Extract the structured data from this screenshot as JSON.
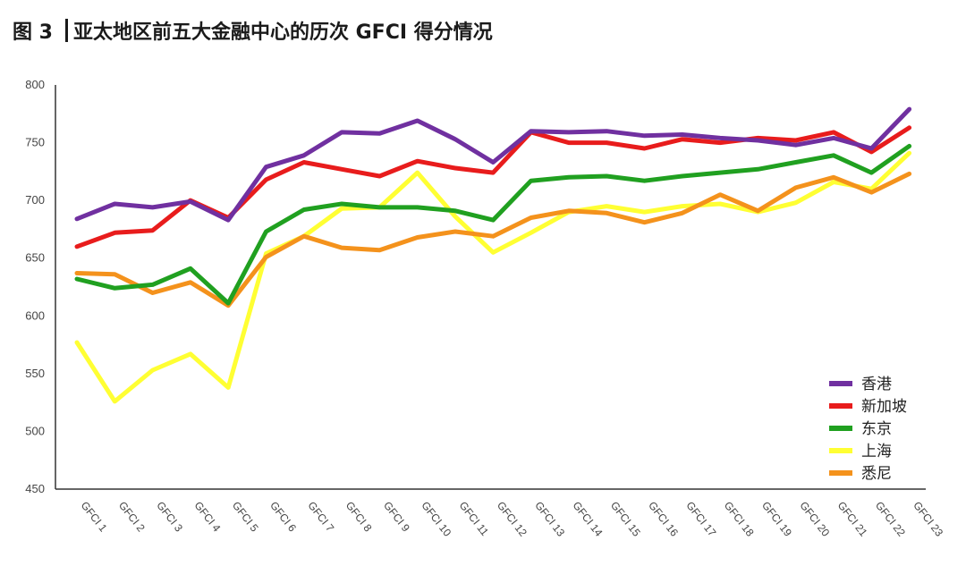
{
  "figure": {
    "number": "图 3",
    "title": "亚太地区前五大金融中心的历次 GFCI 得分情况"
  },
  "chart_data": {
    "type": "line",
    "title": "亚太地区前五大金融中心的历次 GFCI 得分情况",
    "xlabel": "",
    "ylabel": "",
    "ylim": [
      450,
      800
    ],
    "yticks": [
      450,
      500,
      550,
      600,
      650,
      700,
      750,
      800
    ],
    "grid": false,
    "legend_position": "bottom-right",
    "categories": [
      "GFCI 1",
      "GFCI 2",
      "GFCI 3",
      "GFCI 4",
      "GFCI 5",
      "GFCI 6",
      "GFCI 7",
      "GFCI 8",
      "GFCI 9",
      "GFCI 10",
      "GFCI 11",
      "GFCI 12",
      "GFCI 13",
      "GFCI 14",
      "GFCI 15",
      "GFCI 16",
      "GFCI 17",
      "GFCI 18",
      "GFCI 19",
      "GFCI 20",
      "GFCI 21",
      "GFCI 22",
      "GFCI 23"
    ],
    "series": [
      {
        "name": "香港",
        "color": "#7030a0",
        "values": [
          684,
          697,
          694,
          699,
          683,
          729,
          739,
          759,
          758,
          769,
          753,
          733,
          760,
          759,
          760,
          756,
          757,
          754,
          752,
          748,
          754,
          745,
          779
        ]
      },
      {
        "name": "新加坡",
        "color": "#e81c1c",
        "values": [
          660,
          672,
          674,
          700,
          685,
          718,
          733,
          727,
          721,
          734,
          728,
          724,
          759,
          750,
          750,
          745,
          753,
          750,
          754,
          752,
          759,
          742,
          763
        ]
      },
      {
        "name": "东京",
        "color": "#20a020",
        "values": [
          632,
          624,
          627,
          641,
          611,
          673,
          692,
          697,
          694,
          694,
          691,
          683,
          717,
          720,
          721,
          717,
          721,
          724,
          727,
          733,
          739,
          724,
          747
        ]
      },
      {
        "name": "上海",
        "color": "#ffff33",
        "values": [
          577,
          526,
          553,
          567,
          538,
          654,
          669,
          693,
          694,
          724,
          686,
          655,
          672,
          690,
          695,
          690,
          695,
          697,
          690,
          698,
          716,
          710,
          741
        ]
      },
      {
        "name": "悉尼",
        "color": "#f4921c",
        "values": [
          637,
          636,
          620,
          629,
          609,
          651,
          669,
          659,
          657,
          668,
          673,
          669,
          685,
          691,
          689,
          681,
          689,
          705,
          691,
          711,
          720,
          707,
          723
        ]
      }
    ]
  }
}
